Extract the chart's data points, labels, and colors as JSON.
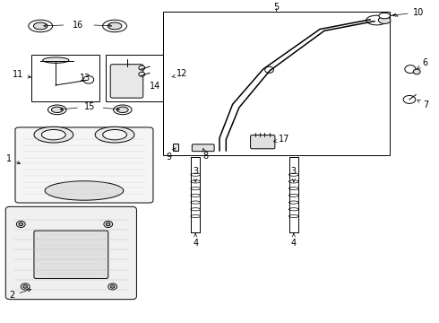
{
  "bg_color": "#ffffff",
  "line_color": "#000000",
  "label_fontsize": 7,
  "lw": 0.7
}
